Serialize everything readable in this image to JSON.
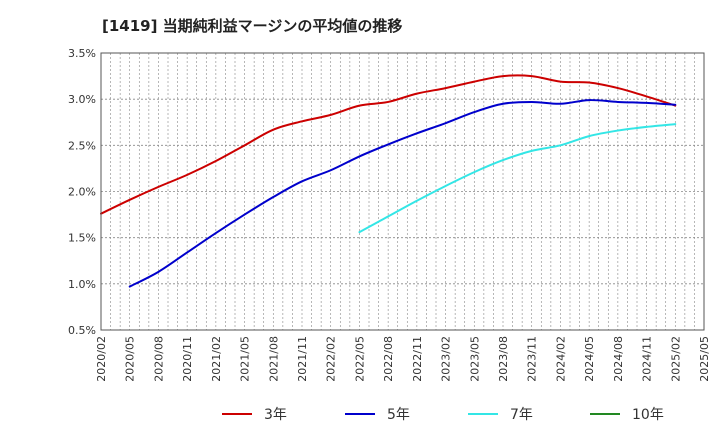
{
  "chart_data": {
    "type": "line",
    "title": "[1419]  当期純利益マージンの平均値の推移",
    "xlabel": "",
    "ylabel": "",
    "ylim": [
      0.5,
      3.5
    ],
    "y_ticks": [
      "0.5%",
      "1.0%",
      "1.5%",
      "2.0%",
      "2.5%",
      "3.0%",
      "3.5%"
    ],
    "y_tick_values": [
      0.5,
      1.0,
      1.5,
      2.0,
      2.5,
      3.0,
      3.5
    ],
    "x_ticks": [
      "2020/02",
      "2020/05",
      "2020/08",
      "2020/11",
      "2021/02",
      "2021/05",
      "2021/08",
      "2021/11",
      "2022/02",
      "2022/05",
      "2022/08",
      "2022/11",
      "2023/02",
      "2023/05",
      "2023/08",
      "2023/11",
      "2024/02",
      "2024/05",
      "2024/08",
      "2024/11",
      "2025/02",
      "2025/05"
    ],
    "grid": true,
    "legend_position": "bottom",
    "series": [
      {
        "name": "3年",
        "color": "#cc0000",
        "x": [
          "2020/02",
          "2020/05",
          "2020/08",
          "2020/11",
          "2021/02",
          "2021/05",
          "2021/08",
          "2021/11",
          "2022/02",
          "2022/05",
          "2022/08",
          "2022/11",
          "2023/02",
          "2023/05",
          "2023/08",
          "2023/11",
          "2024/02",
          "2024/05",
          "2024/08",
          "2024/11",
          "2025/02"
        ],
        "values": [
          1.76,
          1.91,
          2.05,
          2.18,
          2.33,
          2.5,
          2.67,
          2.76,
          2.83,
          2.93,
          2.97,
          3.06,
          3.12,
          3.19,
          3.25,
          3.25,
          3.19,
          3.18,
          3.12,
          3.03,
          2.93
        ]
      },
      {
        "name": "5年",
        "color": "#0000cc",
        "x": [
          "2020/05",
          "2020/08",
          "2020/11",
          "2021/02",
          "2021/05",
          "2021/08",
          "2021/11",
          "2022/02",
          "2022/05",
          "2022/08",
          "2022/11",
          "2023/02",
          "2023/05",
          "2023/08",
          "2023/11",
          "2024/02",
          "2024/05",
          "2024/08",
          "2024/11",
          "2025/02"
        ],
        "values": [
          0.97,
          1.13,
          1.34,
          1.55,
          1.75,
          1.94,
          2.11,
          2.23,
          2.38,
          2.51,
          2.63,
          2.74,
          2.86,
          2.95,
          2.97,
          2.95,
          2.99,
          2.97,
          2.96,
          2.94
        ]
      },
      {
        "name": "7年",
        "color": "#33e6e6",
        "x": [
          "2022/05",
          "2022/08",
          "2022/11",
          "2023/02",
          "2023/05",
          "2023/08",
          "2023/11",
          "2024/02",
          "2024/05",
          "2024/08",
          "2024/11",
          "2025/02"
        ],
        "values": [
          1.56,
          1.73,
          1.9,
          2.06,
          2.21,
          2.34,
          2.44,
          2.5,
          2.6,
          2.66,
          2.7,
          2.73
        ]
      },
      {
        "name": "10年",
        "color": "#228822",
        "x": [],
        "values": []
      }
    ]
  }
}
